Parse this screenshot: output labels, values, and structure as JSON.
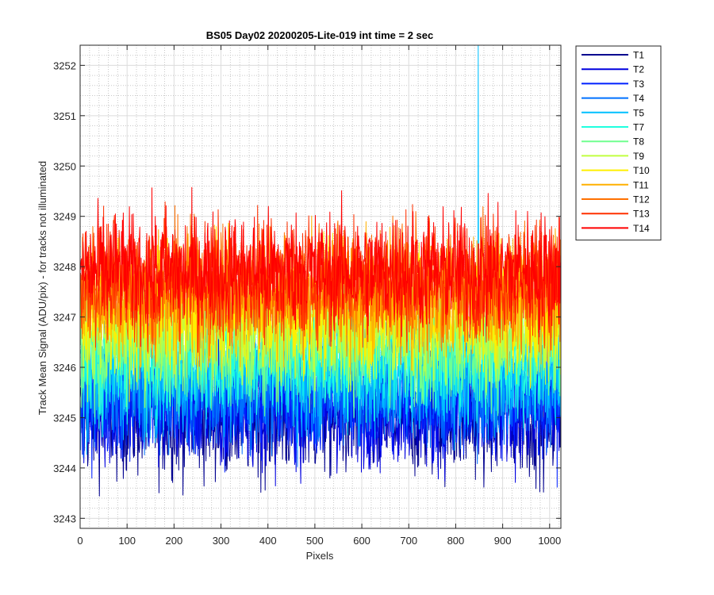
{
  "chart_data": {
    "type": "line",
    "title": "BS05 Day02 20200205-Lite-019 int time = 2 sec",
    "xlabel": "Pixels",
    "ylabel": "Track Mean Signal (ADU/pix) - for tracks not illuminated",
    "xlim": [
      0,
      1024
    ],
    "ylim": [
      3242.8,
      3252.4
    ],
    "xticks": [
      0,
      100,
      200,
      300,
      400,
      500,
      600,
      700,
      800,
      900,
      1000
    ],
    "yticks": [
      3243,
      3244,
      3245,
      3246,
      3247,
      3248,
      3249,
      3250,
      3251,
      3252
    ],
    "xtick_labels": [
      "0",
      "100",
      "200",
      "300",
      "400",
      "500",
      "600",
      "700",
      "800",
      "900",
      "1000"
    ],
    "ytick_labels": [
      "3243",
      "3244",
      "3245",
      "3246",
      "3247",
      "3248",
      "3249",
      "3250",
      "3251",
      "3252"
    ],
    "grid": true,
    "minor_grid": true,
    "legend_position": "outside-top-right",
    "x_range_sampled": {
      "start": 1,
      "end": 1024
    },
    "series": [
      {
        "name": "T1",
        "color": "#00008f",
        "mean": 3245.0,
        "noise_sd": 0.6
      },
      {
        "name": "T2",
        "color": "#0000df",
        "mean": 3245.2,
        "noise_sd": 0.6
      },
      {
        "name": "T3",
        "color": "#0020ff",
        "mean": 3245.4,
        "noise_sd": 0.6
      },
      {
        "name": "T4",
        "color": "#0070ff",
        "mean": 3245.6,
        "noise_sd": 0.6
      },
      {
        "name": "T5",
        "color": "#00c0ff",
        "mean": 3245.9,
        "noise_sd": 0.6,
        "spike": {
          "x": 848,
          "y": 3252.4
        }
      },
      {
        "name": "T7",
        "color": "#20ffdf",
        "mean": 3246.2,
        "noise_sd": 0.6
      },
      {
        "name": "T8",
        "color": "#70ff8f",
        "mean": 3246.5,
        "noise_sd": 0.6
      },
      {
        "name": "T9",
        "color": "#c0ff40",
        "mean": 3246.8,
        "noise_sd": 0.6
      },
      {
        "name": "T10",
        "color": "#ffef00",
        "mean": 3247.1,
        "noise_sd": 0.6
      },
      {
        "name": "T11",
        "color": "#ffb000",
        "mean": 3247.4,
        "noise_sd": 0.6
      },
      {
        "name": "T12",
        "color": "#ff7000",
        "mean": 3247.6,
        "noise_sd": 0.6
      },
      {
        "name": "T13",
        "color": "#ff3000",
        "mean": 3247.8,
        "noise_sd": 0.6
      },
      {
        "name": "T14",
        "color": "#ff0000",
        "mean": 3247.9,
        "noise_sd": 0.6
      }
    ]
  }
}
